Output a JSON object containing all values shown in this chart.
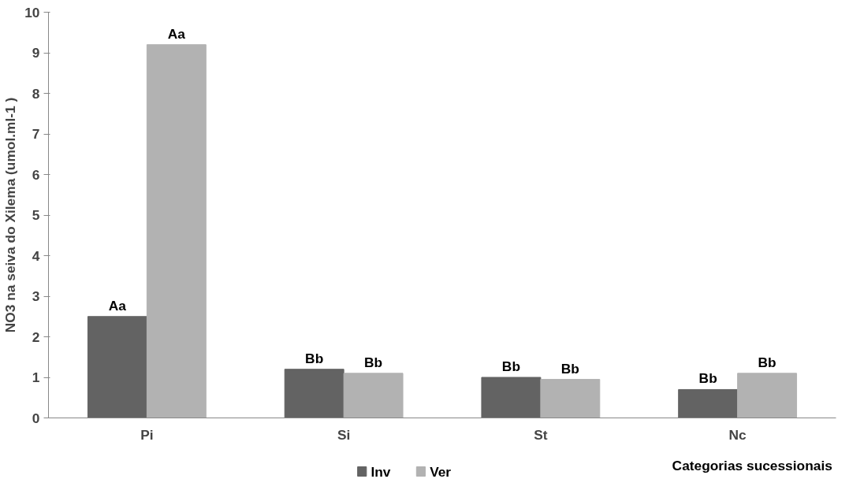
{
  "chart_data": {
    "type": "bar",
    "xlabel": "Categorias sucessionais",
    "ylabel": "NO3 na seiva do Xilema (umol.ml-1 )",
    "categories": [
      "Pi",
      "Si",
      "St",
      "Nc"
    ],
    "series": [
      {
        "name": "Inv",
        "color": "#636363",
        "values": [
          2.5,
          1.2,
          1.0,
          0.7
        ],
        "value_labels": [
          "Aa",
          "Bb",
          "Bb",
          "Bb"
        ]
      },
      {
        "name": "Ver",
        "color": "#b2b2b2",
        "values": [
          9.2,
          1.1,
          0.95,
          1.1
        ],
        "value_labels": [
          "Aa",
          "Bb",
          "Bb",
          "Bb"
        ]
      }
    ],
    "ylim": [
      0,
      10
    ],
    "yticks": [
      0,
      1,
      2,
      3,
      4,
      5,
      6,
      7,
      8,
      9,
      10
    ],
    "grid": false,
    "legend": "bottom"
  }
}
